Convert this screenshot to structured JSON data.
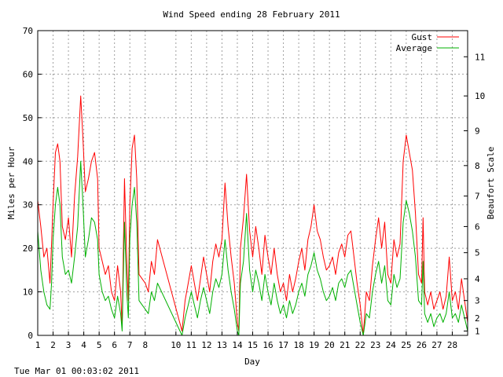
{
  "chart_data": {
    "type": "line",
    "title": "Wind Speed ending 28 February 2011",
    "xlabel": "Day",
    "ylabel": "Miles per Hour",
    "y2label": "Beaufort Scale",
    "timestamp": "Tue Mar 01 00:03:02 2011",
    "xlim": [
      1,
      29
    ],
    "ylim": [
      0,
      70
    ],
    "yticks": [
      0,
      10,
      20,
      30,
      40,
      50,
      60,
      70
    ],
    "xticks": [
      1,
      2,
      3,
      4,
      5,
      6,
      7,
      8,
      10,
      11,
      12,
      13,
      14,
      15,
      16,
      17,
      18,
      19,
      20,
      21,
      22,
      23,
      24,
      25,
      26,
      27,
      28
    ],
    "beaufort_ticks": [
      {
        "label": "1",
        "mph": 1
      },
      {
        "label": "2",
        "mph": 4
      },
      {
        "label": "3",
        "mph": 8
      },
      {
        "label": "4",
        "mph": 13
      },
      {
        "label": "5",
        "mph": 19
      },
      {
        "label": "6",
        "mph": 25
      },
      {
        "label": "7",
        "mph": 32
      },
      {
        "label": "8",
        "mph": 39
      },
      {
        "label": "9",
        "mph": 47
      },
      {
        "label": "10",
        "mph": 55
      },
      {
        "label": "11",
        "mph": 64
      }
    ],
    "grid": true,
    "legend_position": "top-right",
    "series": [
      {
        "name": "Gust",
        "color": "#ff0000",
        "points": [
          [
            1.0,
            31
          ],
          [
            1.2,
            25
          ],
          [
            1.4,
            18
          ],
          [
            1.6,
            20
          ],
          [
            1.8,
            12
          ],
          [
            1.9,
            21
          ],
          [
            2.0,
            30
          ],
          [
            2.15,
            42
          ],
          [
            2.3,
            44
          ],
          [
            2.45,
            40
          ],
          [
            2.6,
            25
          ],
          [
            2.8,
            22
          ],
          [
            3.0,
            27
          ],
          [
            3.2,
            18
          ],
          [
            3.4,
            32
          ],
          [
            3.6,
            41
          ],
          [
            3.8,
            55
          ],
          [
            3.95,
            45
          ],
          [
            4.1,
            33
          ],
          [
            4.3,
            36
          ],
          [
            4.5,
            40
          ],
          [
            4.7,
            42
          ],
          [
            4.9,
            36
          ],
          [
            5.0,
            20
          ],
          [
            5.2,
            17
          ],
          [
            5.4,
            14
          ],
          [
            5.6,
            16
          ],
          [
            5.8,
            10
          ],
          [
            6.0,
            8
          ],
          [
            6.2,
            16
          ],
          [
            6.4,
            10
          ],
          [
            6.5,
            2
          ],
          [
            6.65,
            36
          ],
          [
            6.8,
            17
          ],
          [
            6.9,
            8
          ],
          [
            7.0,
            30
          ],
          [
            7.15,
            43
          ],
          [
            7.3,
            46
          ],
          [
            7.45,
            36
          ],
          [
            7.6,
            14
          ],
          [
            7.8,
            13
          ],
          [
            8.0,
            12
          ],
          [
            8.2,
            10
          ],
          [
            8.4,
            17
          ],
          [
            8.6,
            14
          ],
          [
            8.8,
            22
          ],
          [
            10.4,
            1
          ],
          [
            10.6,
            8
          ],
          [
            10.8,
            12
          ],
          [
            11.0,
            16
          ],
          [
            11.2,
            12
          ],
          [
            11.4,
            8
          ],
          [
            11.6,
            13
          ],
          [
            11.8,
            18
          ],
          [
            12.0,
            14
          ],
          [
            12.2,
            10
          ],
          [
            12.4,
            17
          ],
          [
            12.6,
            21
          ],
          [
            12.8,
            18
          ],
          [
            13.0,
            22
          ],
          [
            13.2,
            35
          ],
          [
            13.4,
            25
          ],
          [
            13.6,
            18
          ],
          [
            13.8,
            12
          ],
          [
            14.0,
            3
          ],
          [
            14.1,
            1
          ],
          [
            14.2,
            20
          ],
          [
            14.4,
            27
          ],
          [
            14.6,
            37
          ],
          [
            14.8,
            24
          ],
          [
            15.0,
            18
          ],
          [
            15.2,
            25
          ],
          [
            15.4,
            20
          ],
          [
            15.6,
            14
          ],
          [
            15.8,
            23
          ],
          [
            16.0,
            18
          ],
          [
            16.2,
            14
          ],
          [
            16.4,
            20
          ],
          [
            16.6,
            14
          ],
          [
            16.8,
            10
          ],
          [
            17.0,
            12
          ],
          [
            17.2,
            8
          ],
          [
            17.4,
            14
          ],
          [
            17.6,
            10
          ],
          [
            17.8,
            13
          ],
          [
            18.0,
            17
          ],
          [
            18.2,
            20
          ],
          [
            18.4,
            15
          ],
          [
            18.6,
            22
          ],
          [
            18.8,
            25
          ],
          [
            19.0,
            30
          ],
          [
            19.2,
            24
          ],
          [
            19.4,
            22
          ],
          [
            19.6,
            18
          ],
          [
            19.8,
            15
          ],
          [
            20.0,
            16
          ],
          [
            20.2,
            18
          ],
          [
            20.4,
            14
          ],
          [
            20.6,
            19
          ],
          [
            20.8,
            21
          ],
          [
            21.0,
            18
          ],
          [
            21.2,
            23
          ],
          [
            21.4,
            24
          ],
          [
            21.6,
            18
          ],
          [
            21.8,
            12
          ],
          [
            22.0,
            7
          ],
          [
            22.2,
            0
          ],
          [
            22.4,
            10
          ],
          [
            22.6,
            8
          ],
          [
            22.8,
            16
          ],
          [
            23.0,
            22
          ],
          [
            23.2,
            27
          ],
          [
            23.4,
            20
          ],
          [
            23.6,
            26
          ],
          [
            23.8,
            14
          ],
          [
            24.0,
            12
          ],
          [
            24.2,
            22
          ],
          [
            24.4,
            18
          ],
          [
            24.6,
            21
          ],
          [
            24.8,
            40
          ],
          [
            25.0,
            46
          ],
          [
            25.2,
            42
          ],
          [
            25.4,
            38
          ],
          [
            25.6,
            28
          ],
          [
            25.8,
            14
          ],
          [
            26.0,
            12
          ],
          [
            26.1,
            27
          ],
          [
            26.2,
            10
          ],
          [
            26.4,
            7
          ],
          [
            26.6,
            10
          ],
          [
            26.8,
            6
          ],
          [
            27.0,
            8
          ],
          [
            27.2,
            10
          ],
          [
            27.4,
            6
          ],
          [
            27.6,
            9
          ],
          [
            27.8,
            18
          ],
          [
            28.0,
            8
          ],
          [
            28.2,
            10
          ],
          [
            28.4,
            6
          ],
          [
            28.6,
            13
          ],
          [
            28.8,
            8
          ],
          [
            29.0,
            3
          ]
        ]
      },
      {
        "name": "Average",
        "color": "#00b000",
        "points": [
          [
            1.0,
            24
          ],
          [
            1.2,
            15
          ],
          [
            1.4,
            10
          ],
          [
            1.6,
            7
          ],
          [
            1.8,
            6
          ],
          [
            1.9,
            12
          ],
          [
            2.0,
            22
          ],
          [
            2.15,
            30
          ],
          [
            2.3,
            34
          ],
          [
            2.45,
            30
          ],
          [
            2.6,
            18
          ],
          [
            2.8,
            14
          ],
          [
            3.0,
            15
          ],
          [
            3.2,
            12
          ],
          [
            3.4,
            18
          ],
          [
            3.6,
            25
          ],
          [
            3.8,
            40
          ],
          [
            3.95,
            30
          ],
          [
            4.1,
            18
          ],
          [
            4.3,
            22
          ],
          [
            4.5,
            27
          ],
          [
            4.7,
            26
          ],
          [
            4.9,
            22
          ],
          [
            5.0,
            14
          ],
          [
            5.2,
            10
          ],
          [
            5.4,
            8
          ],
          [
            5.6,
            9
          ],
          [
            5.8,
            6
          ],
          [
            6.0,
            4
          ],
          [
            6.2,
            9
          ],
          [
            6.4,
            5
          ],
          [
            6.5,
            1
          ],
          [
            6.65,
            26
          ],
          [
            6.8,
            10
          ],
          [
            6.9,
            4
          ],
          [
            7.0,
            22
          ],
          [
            7.15,
            30
          ],
          [
            7.3,
            34
          ],
          [
            7.45,
            26
          ],
          [
            7.6,
            8
          ],
          [
            7.8,
            7
          ],
          [
            8.0,
            6
          ],
          [
            8.2,
            5
          ],
          [
            8.4,
            10
          ],
          [
            8.6,
            8
          ],
          [
            8.8,
            12
          ],
          [
            10.4,
            0
          ],
          [
            10.6,
            4
          ],
          [
            10.8,
            7
          ],
          [
            11.0,
            10
          ],
          [
            11.2,
            7
          ],
          [
            11.4,
            4
          ],
          [
            11.6,
            8
          ],
          [
            11.8,
            11
          ],
          [
            12.0,
            8
          ],
          [
            12.2,
            5
          ],
          [
            12.4,
            10
          ],
          [
            12.6,
            13
          ],
          [
            12.8,
            11
          ],
          [
            13.0,
            14
          ],
          [
            13.2,
            22
          ],
          [
            13.4,
            15
          ],
          [
            13.6,
            10
          ],
          [
            13.8,
            6
          ],
          [
            14.0,
            1
          ],
          [
            14.1,
            0
          ],
          [
            14.2,
            12
          ],
          [
            14.4,
            17
          ],
          [
            14.6,
            28
          ],
          [
            14.8,
            15
          ],
          [
            15.0,
            10
          ],
          [
            15.2,
            15
          ],
          [
            15.4,
            12
          ],
          [
            15.6,
            8
          ],
          [
            15.8,
            14
          ],
          [
            16.0,
            10
          ],
          [
            16.2,
            7
          ],
          [
            16.4,
            12
          ],
          [
            16.6,
            8
          ],
          [
            16.8,
            5
          ],
          [
            17.0,
            7
          ],
          [
            17.2,
            4
          ],
          [
            17.4,
            8
          ],
          [
            17.6,
            5
          ],
          [
            17.8,
            7
          ],
          [
            18.0,
            10
          ],
          [
            18.2,
            12
          ],
          [
            18.4,
            9
          ],
          [
            18.6,
            14
          ],
          [
            18.8,
            16
          ],
          [
            19.0,
            19
          ],
          [
            19.2,
            15
          ],
          [
            19.4,
            13
          ],
          [
            19.6,
            10
          ],
          [
            19.8,
            8
          ],
          [
            20.0,
            9
          ],
          [
            20.2,
            11
          ],
          [
            20.4,
            8
          ],
          [
            20.6,
            12
          ],
          [
            20.8,
            13
          ],
          [
            21.0,
            11
          ],
          [
            21.2,
            14
          ],
          [
            21.4,
            15
          ],
          [
            21.6,
            11
          ],
          [
            21.8,
            7
          ],
          [
            22.0,
            3
          ],
          [
            22.2,
            0
          ],
          [
            22.4,
            5
          ],
          [
            22.6,
            4
          ],
          [
            22.8,
            10
          ],
          [
            23.0,
            14
          ],
          [
            23.2,
            17
          ],
          [
            23.4,
            12
          ],
          [
            23.6,
            16
          ],
          [
            23.8,
            8
          ],
          [
            24.0,
            7
          ],
          [
            24.2,
            14
          ],
          [
            24.4,
            11
          ],
          [
            24.6,
            13
          ],
          [
            24.8,
            26
          ],
          [
            25.0,
            31
          ],
          [
            25.2,
            28
          ],
          [
            25.4,
            24
          ],
          [
            25.6,
            18
          ],
          [
            25.8,
            8
          ],
          [
            26.0,
            7
          ],
          [
            26.1,
            17
          ],
          [
            26.2,
            5
          ],
          [
            26.4,
            3
          ],
          [
            26.6,
            5
          ],
          [
            26.8,
            2
          ],
          [
            27.0,
            4
          ],
          [
            27.2,
            5
          ],
          [
            27.4,
            3
          ],
          [
            27.6,
            5
          ],
          [
            27.8,
            10
          ],
          [
            28.0,
            4
          ],
          [
            28.2,
            5
          ],
          [
            28.4,
            3
          ],
          [
            28.6,
            7
          ],
          [
            28.8,
            4
          ],
          [
            29.0,
            1
          ]
        ]
      }
    ]
  }
}
